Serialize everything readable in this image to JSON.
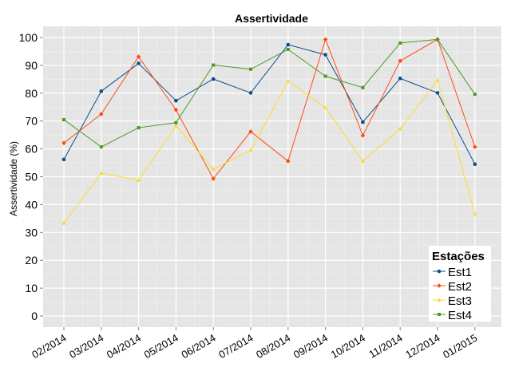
{
  "chart_data": {
    "type": "line",
    "title": "Assertividade",
    "xlabel": "",
    "ylabel": "Assertividade (%)",
    "ylim": [
      -4,
      104
    ],
    "yticks": [
      0,
      10,
      20,
      30,
      40,
      50,
      60,
      70,
      80,
      90,
      100
    ],
    "grid": true,
    "legend_title": "Estações",
    "legend_position": "bottom-right",
    "categories": [
      "02/2014",
      "03/2014",
      "04/2014",
      "05/2014",
      "06/2014",
      "07/2014",
      "08/2014",
      "09/2014",
      "10/2014",
      "11/2014",
      "12/2014",
      "01/2015"
    ],
    "series": [
      {
        "name": "Est1",
        "color": "#0b4f8c",
        "marker": "circle",
        "values": [
          56.2,
          80.7,
          90.7,
          77.3,
          85.1,
          80.1,
          97.4,
          93.8,
          69.6,
          85.3,
          80.1,
          54.5
        ]
      },
      {
        "name": "Est2",
        "color": "#ff4b14",
        "marker": "diamond",
        "values": [
          62.1,
          72.5,
          93.1,
          74.0,
          49.3,
          66.2,
          55.6,
          99.3,
          64.8,
          91.6,
          99.3,
          60.7
        ]
      },
      {
        "name": "Est3",
        "color": "#ffd92e",
        "marker": "triangle",
        "values": [
          33.3,
          51.3,
          48.7,
          68.3,
          52.7,
          59.5,
          84.3,
          74.8,
          55.6,
          67.2,
          84.7,
          36.6
        ]
      },
      {
        "name": "Est4",
        "color": "#4a9a1f",
        "marker": "square",
        "values": [
          70.5,
          60.7,
          67.6,
          69.4,
          90.1,
          88.6,
          95.7,
          86.1,
          82.0,
          98.0,
          99.3,
          79.6
        ]
      }
    ]
  }
}
